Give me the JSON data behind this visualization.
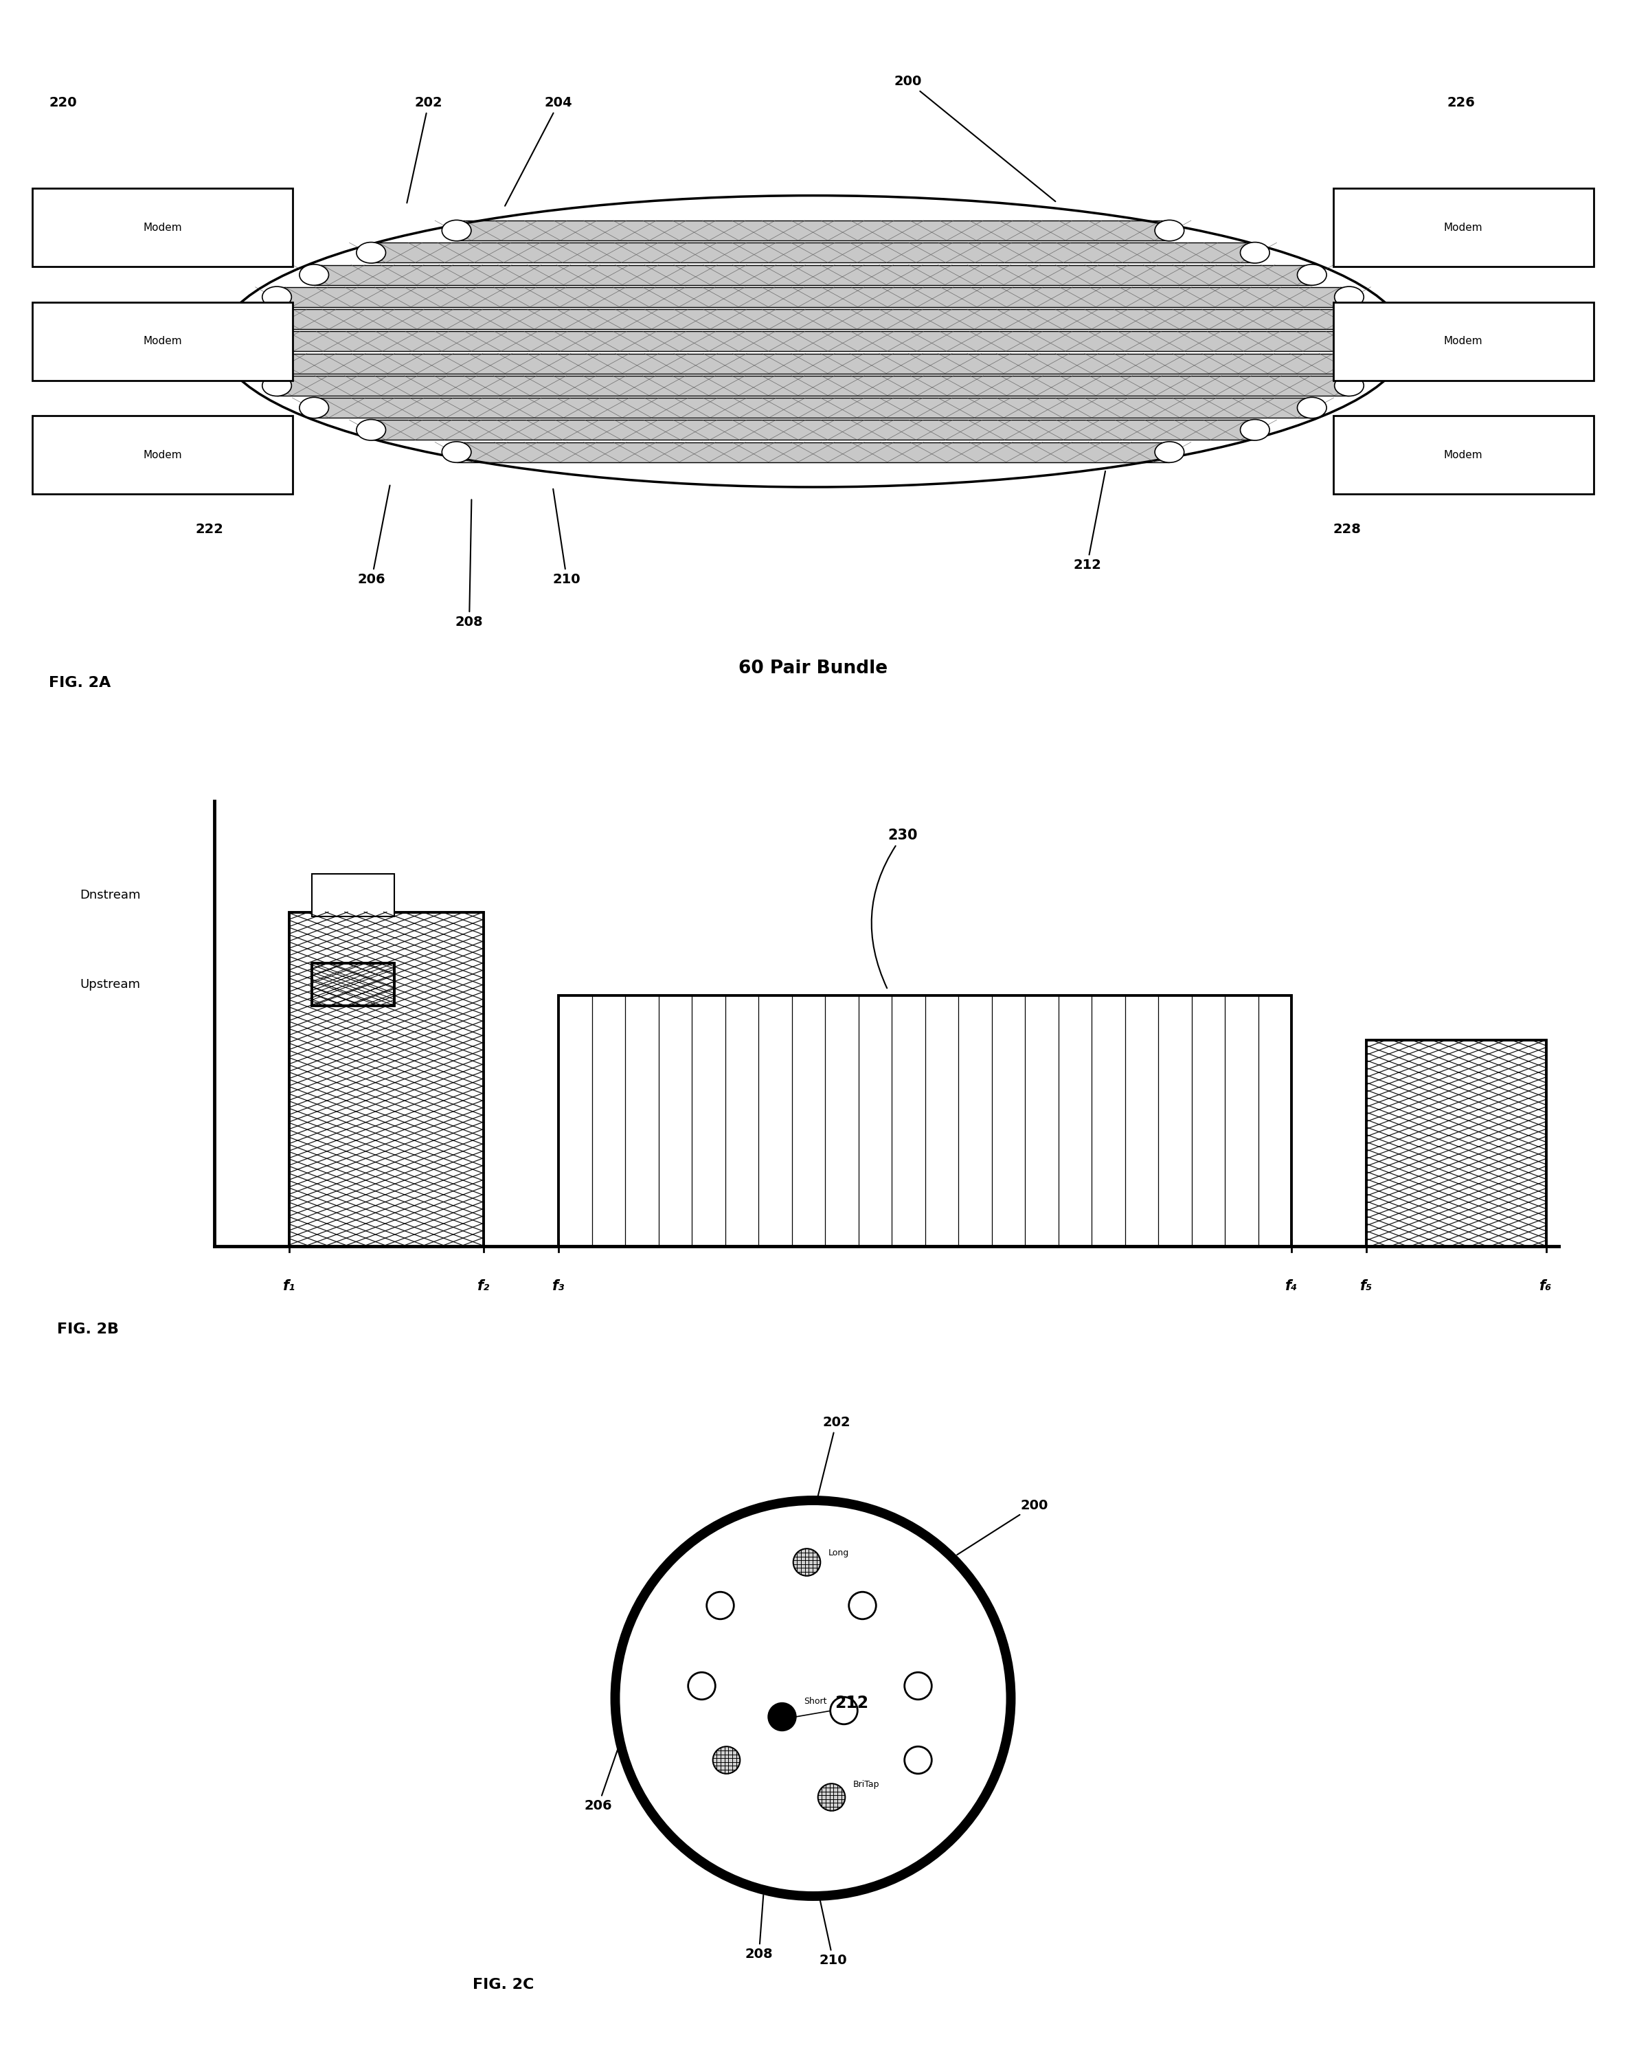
{
  "bg_color": "#ffffff",
  "fig_width": 23.67,
  "fig_height": 30.0,
  "fig2a": {
    "title": "60 Pair Bundle",
    "fig_label": "FIG. 2A",
    "modem_labels_left": [
      "Modem",
      "Modem",
      "Modem"
    ],
    "modem_labels_right": [
      "Modem",
      "Modem",
      "Modem"
    ]
  },
  "fig2b": {
    "fig_label": "FIG. 2B",
    "label_230": "230",
    "legend_dnstream": "Dnstream",
    "legend_upstream": "Upstream",
    "freq_labels": [
      "f₁",
      "f₂",
      "f₃",
      "f₄",
      "f₅",
      "f₆"
    ]
  },
  "fig2c": {
    "fig_label": "FIG. 2C",
    "labels": {
      "long_label": "Long",
      "short_label": "Short",
      "britap_label": "BriTap"
    }
  }
}
